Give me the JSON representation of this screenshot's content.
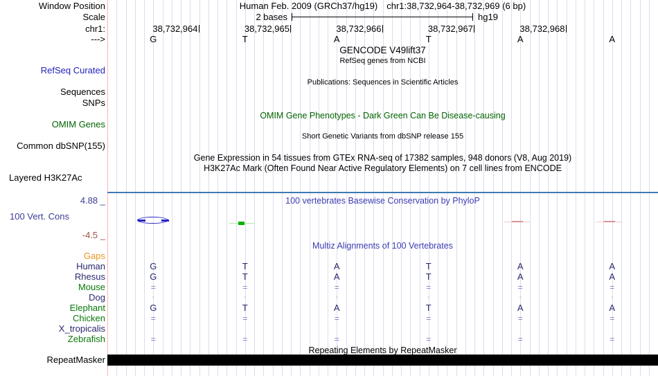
{
  "header": {
    "assembly": "Human Feb. 2009 (GRCh37/hg19)",
    "position": "chr1:38,732,964-38,732,969 (6 bp)"
  },
  "sidebar": {
    "window_position": "Window Position",
    "scale": "Scale",
    "chrom": "chr1:",
    "strand": "--->",
    "refseq": "RefSeq Curated",
    "sequences": "Sequences",
    "snps": "SNPs",
    "omim": "OMIM Genes",
    "dbsnp": "Common dbSNP(155)",
    "h3k27ac": "Layered H3K27Ac",
    "cons_max": "4.88 _",
    "cons_label": "100 Vert. Cons",
    "cons_min": "-4.5 _",
    "repeatmasker": "RepeatMasker"
  },
  "scale": {
    "value": "2 bases",
    "assembly": "hg19"
  },
  "ruler": {
    "coordinates": [
      "38,732,964",
      "38,732,965",
      "38,732,966",
      "38,732,967",
      "38,732,968"
    ]
  },
  "sequence": {
    "bases": [
      "G",
      "T",
      "A",
      "T",
      "A",
      "A"
    ]
  },
  "center_titles": {
    "gencode": "GENCODE V49lift37",
    "refseq": "RefSeq genes from NCBI",
    "publications": "Publications: Sequences in Scientific Articles",
    "omim": "OMIM Gene Phenotypes - Dark Green Can Be Disease-causing",
    "dbsnp": "Short Genetic Variants from dbSNP release 155",
    "gtex": "Gene Expression in 54 tissues from GTEx RNA-seq of 17382 samples, 948 donors (V8, Aug 2019)",
    "h3k27ac": "H3K27Ac Mark (Often Found Near Active Regulatory Elements) on 7 cell lines from ENCODE",
    "phylop": "100 vertebrates Basewise Conservation by PhyloP",
    "multiz": "Multiz Alignments of 100 Vertebrates",
    "repeat": "Repeating Elements by RepeatMasker"
  },
  "multiz": {
    "species": [
      {
        "name": "Gaps",
        "color": "#e8951e",
        "cells": [
          "",
          "",
          "",
          "",
          "",
          ""
        ]
      },
      {
        "name": "Human",
        "color": "#28286e",
        "cells": [
          "G",
          "T",
          "A",
          "T",
          "A",
          "A"
        ]
      },
      {
        "name": "Rhesus",
        "color": "#28286e",
        "cells": [
          "G",
          "T",
          "A",
          "T",
          "A",
          "A"
        ]
      },
      {
        "name": "Mouse",
        "color": "#087808",
        "cells": [
          "=",
          "=",
          "=",
          "=",
          "=",
          "="
        ]
      },
      {
        "name": "Dog",
        "color": "#28286e",
        "cells": [
          "-",
          "-",
          "-",
          "-",
          "-",
          "-"
        ]
      },
      {
        "name": "Elephant",
        "color": "#087808",
        "cells": [
          "G",
          "T",
          "A",
          "T",
          "A",
          "A"
        ]
      },
      {
        "name": "Chicken",
        "color": "#087808",
        "cells": [
          "=",
          "=",
          "=",
          "=",
          "=",
          "="
        ]
      },
      {
        "name": "X_tropicalis",
        "color": "#28286e",
        "cells": [
          "",
          "",
          "",
          "",
          "",
          ""
        ]
      },
      {
        "name": "Zebrafish",
        "color": "#087808",
        "cells": [
          "=",
          "=",
          "=",
          "=",
          "=",
          "="
        ]
      }
    ]
  },
  "colors": {
    "track-blue": "#2222bb",
    "omim-green": "#006400",
    "title-blue": "#3c3cb4",
    "navy": "#28286e",
    "cons-axis": "#3c3c96",
    "cons-min": "#9e5044",
    "grid": "#dcdcee",
    "pink": "#ffb3b3",
    "sep-blue": "#3f79b1",
    "eq": "#8080c4",
    "dash": "#a8a8a8",
    "ellipse": "#2626c8",
    "green-box": "#00b400",
    "green-line": "#b2e4b2",
    "red-line": "#eccaca",
    "red-core": "#d89494"
  }
}
